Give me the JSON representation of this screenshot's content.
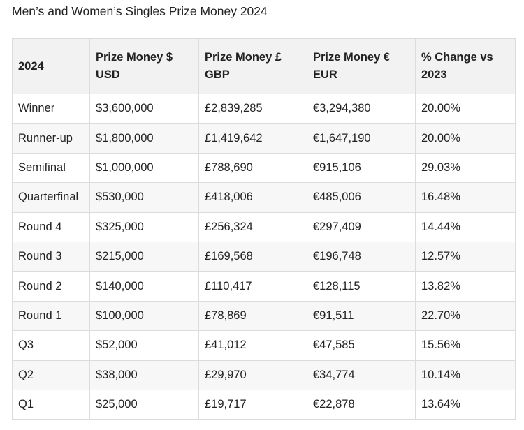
{
  "title": "Men’s and Women’s Singles Prize Money 2024",
  "table": {
    "headers": [
      "2024",
      "Prize Money $ USD",
      "Prize Money £ GBP",
      "Prize Money € EUR",
      "% Change vs 2023"
    ],
    "rows": [
      [
        "Winner",
        "$3,600,000",
        "£2,839,285",
        "€3,294,380",
        "20.00%"
      ],
      [
        "Runner-up",
        "$1,800,000",
        "£1,419,642",
        "€1,647,190",
        "20.00%"
      ],
      [
        "Semifinal",
        "$1,000,000",
        "£788,690",
        "€915,106",
        "29.03%"
      ],
      [
        "Quarterfinal",
        "$530,000",
        "£418,006",
        "€485,006",
        "16.48%"
      ],
      [
        "Round 4",
        "$325,000",
        "£256,324",
        "€297,409",
        "14.44%"
      ],
      [
        "Round 3",
        "$215,000",
        "£169,568",
        "€196,748",
        "12.57%"
      ],
      [
        "Round 2",
        "$140,000",
        "£110,417",
        "€128,115",
        "13.82%"
      ],
      [
        "Round 1",
        "$100,000",
        "£78,869",
        "€91,511",
        "22.70%"
      ],
      [
        "Q3",
        "$52,000",
        "£41,012",
        "€47,585",
        "15.56%"
      ],
      [
        "Q2",
        "$38,000",
        "£29,970",
        "€34,774",
        "10.14%"
      ],
      [
        "Q1",
        "$25,000",
        "£19,717",
        "€22,878",
        "13.64%"
      ]
    ]
  }
}
